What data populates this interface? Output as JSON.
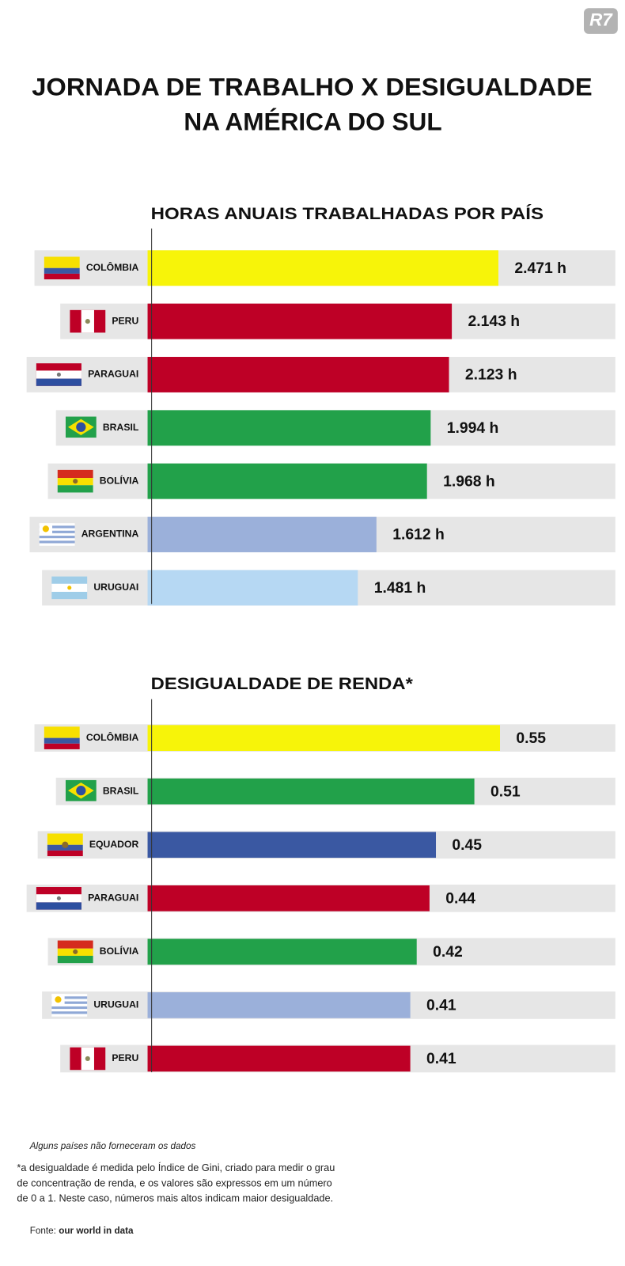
{
  "logo": "R7",
  "title": [
    "JORNADA DE TRABALHO X DESIGUALDADE",
    "NA AMÉRICA DO SUL"
  ],
  "chart_data": [
    {
      "type": "bar",
      "title": "HORAS ANUAIS TRABALHADAS POR PAÍS",
      "categories": [
        "COLÔMBIA",
        "PERU",
        "PARAGUAI",
        "BRASIL",
        "BOLÍVIA",
        "ARGENTINA",
        "URUGUAI"
      ],
      "values": [
        2471,
        2143,
        2123,
        1994,
        1968,
        1612,
        1481
      ],
      "value_labels": [
        "2.471 h",
        "2.143 h",
        "2.123 h",
        "1.994 h",
        "1.968 h",
        "1.612 h",
        "1.481 h"
      ],
      "colors": [
        "#f7f409",
        "#be0026",
        "#be0026",
        "#22a14a",
        "#22a14a",
        "#9bb0da",
        "#b6d8f3"
      ]
    },
    {
      "type": "bar",
      "title": "DESIGUALDADE DE RENDA*",
      "categories": [
        "COLÔMBIA",
        "BRASIL",
        "EQUADOR",
        "PARAGUAI",
        "BOLÍVIA",
        "URUGUAI",
        "PERU"
      ],
      "values": [
        0.55,
        0.51,
        0.45,
        0.44,
        0.42,
        0.41,
        0.41
      ],
      "colors": [
        "#f7f409",
        "#22a14a",
        "#3a58a2",
        "#be0026",
        "#22a14a",
        "#9bb0da",
        "#be0026"
      ]
    }
  ],
  "missing_note": "Alguns países não forneceram os dados",
  "footnote": [
    "*a desigualdade é medida pelo Índice de Gini, criado para medir o grau",
    "de concentração de renda, e os valores são expressos em um número",
    "de 0 a 1. Neste caso, números mais altos indicam maior desigualdade."
  ],
  "source": {
    "label": "Fonte:",
    "text": "our world in data"
  }
}
